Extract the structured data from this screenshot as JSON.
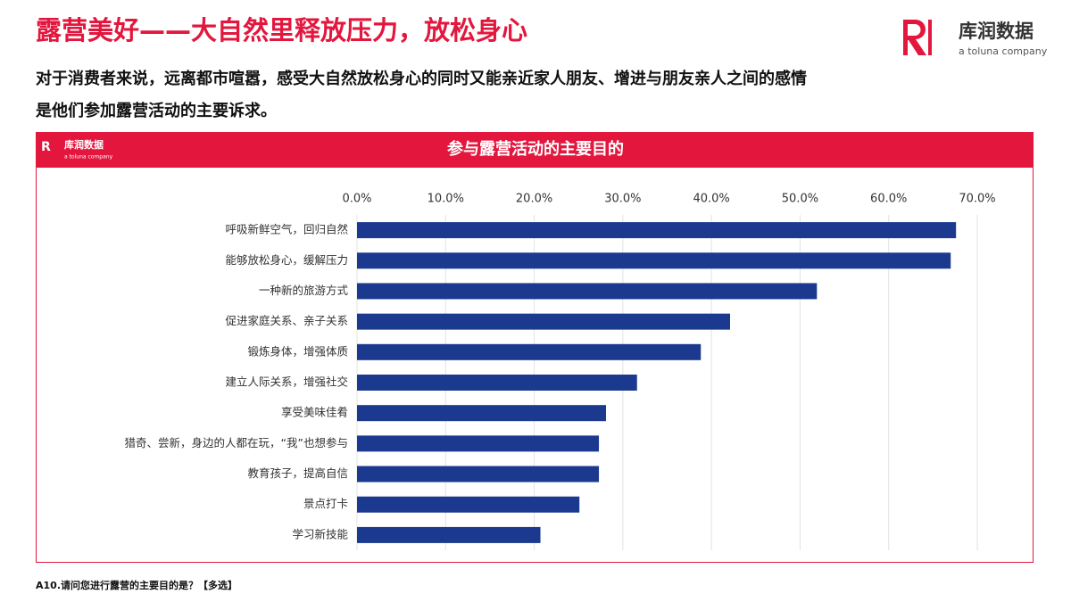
{
  "header": {
    "title": "露营美好——大自然里释放压力，放松身心",
    "subtitle_lines": [
      "对于消费者来说，远离都市喧嚣，感受大自然放松身心的同时又能亲近家人朋友、增进与朋友亲人之间的感情",
      "是他们参加露营活动的主要诉求。"
    ]
  },
  "logo": {
    "name": "库润数据",
    "tagline": "a toluna company"
  },
  "footnote": "A10.请问您进行露营的主要目的是？【多选】",
  "chart_data": {
    "type": "bar",
    "orientation": "horizontal",
    "title": "参与露营活动的主要目的",
    "categories": [
      "呼吸新鲜空气，回归自然",
      "能够放松身心，缓解压力",
      "一种新的旅游方式",
      "促进家庭关系、亲子关系",
      "锻炼身体，增强体质",
      "建立人际关系，增强社交",
      "享受美味佳肴",
      "猎奇、尝新，身边的人都在玩，“我”也想参与",
      "教育孩子，提高自信",
      "景点打卡",
      "学习新技能"
    ],
    "values": [
      67.6,
      67.0,
      51.9,
      42.1,
      38.8,
      31.6,
      28.1,
      27.3,
      27.3,
      25.1,
      20.7
    ],
    "color": "#1b3a8f",
    "xlim": [
      0,
      70
    ],
    "xticks": [
      {
        "value": 0,
        "label": "0.0%"
      },
      {
        "value": 10,
        "label": "10.0%"
      },
      {
        "value": 20,
        "label": "20.0%"
      },
      {
        "value": 30,
        "label": "30.0%"
      },
      {
        "value": 40,
        "label": "40.0%"
      },
      {
        "value": 50,
        "label": "50.0%"
      },
      {
        "value": 60,
        "label": "60.0%"
      },
      {
        "value": 70,
        "label": "70.0%"
      }
    ],
    "grid": true
  }
}
